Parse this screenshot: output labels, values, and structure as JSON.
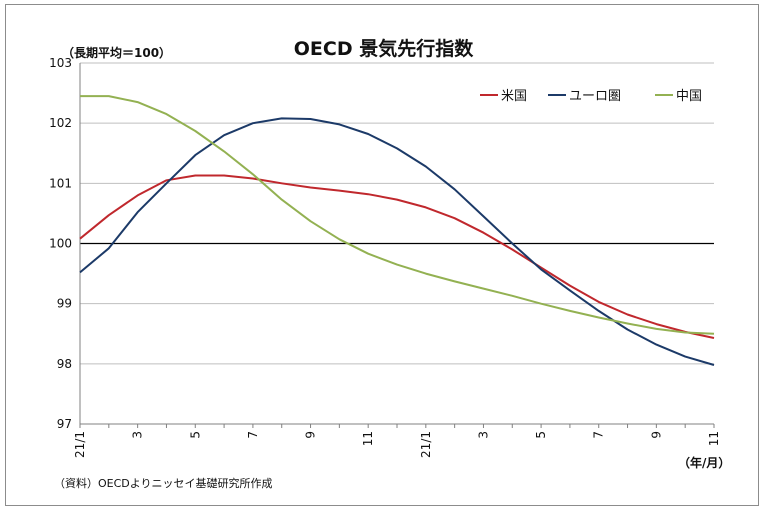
{
  "unit_label": "（長期平均＝100）",
  "x_unit_label": "（年/月）",
  "source_note": "（資料）OECDよりニッセイ基礎研究所作成",
  "chart_data": {
    "type": "line",
    "title": "OECD 景気先行指数",
    "xlabel": "",
    "ylabel": "",
    "ylim": [
      97,
      103
    ],
    "yticks": [
      97,
      98,
      99,
      100,
      101,
      102,
      103
    ],
    "grid": true,
    "reference_line": 100,
    "legend_position": "top-right",
    "x_tick_labels": [
      "21/1",
      "",
      "3",
      "",
      "5",
      "",
      "7",
      "",
      "9",
      "",
      "11",
      "",
      "21/1",
      "",
      "3",
      "",
      "5",
      "",
      "7",
      "",
      "9",
      "",
      "11"
    ],
    "series": [
      {
        "name": "米国",
        "color": "#c0282d",
        "values": [
          100.08,
          100.47,
          100.8,
          101.05,
          101.13,
          101.13,
          101.08,
          101.0,
          100.93,
          100.88,
          100.82,
          100.73,
          100.6,
          100.42,
          100.18,
          99.9,
          99.6,
          99.3,
          99.03,
          98.82,
          98.66,
          98.53,
          98.43
        ]
      },
      {
        "name": "ユーロ圏",
        "color": "#1c3a68",
        "values": [
          99.52,
          99.92,
          100.52,
          101.0,
          101.47,
          101.8,
          102.0,
          102.08,
          102.07,
          101.98,
          101.82,
          101.58,
          101.28,
          100.9,
          100.45,
          100.0,
          99.57,
          99.22,
          98.88,
          98.57,
          98.32,
          98.12,
          97.98
        ]
      },
      {
        "name": "中国",
        "color": "#93b152",
        "values": [
          102.45,
          102.45,
          102.35,
          102.15,
          101.87,
          101.53,
          101.15,
          100.73,
          100.37,
          100.07,
          99.83,
          99.65,
          99.5,
          99.37,
          99.25,
          99.13,
          99.0,
          98.88,
          98.77,
          98.67,
          98.58,
          98.52,
          98.5
        ]
      }
    ]
  }
}
